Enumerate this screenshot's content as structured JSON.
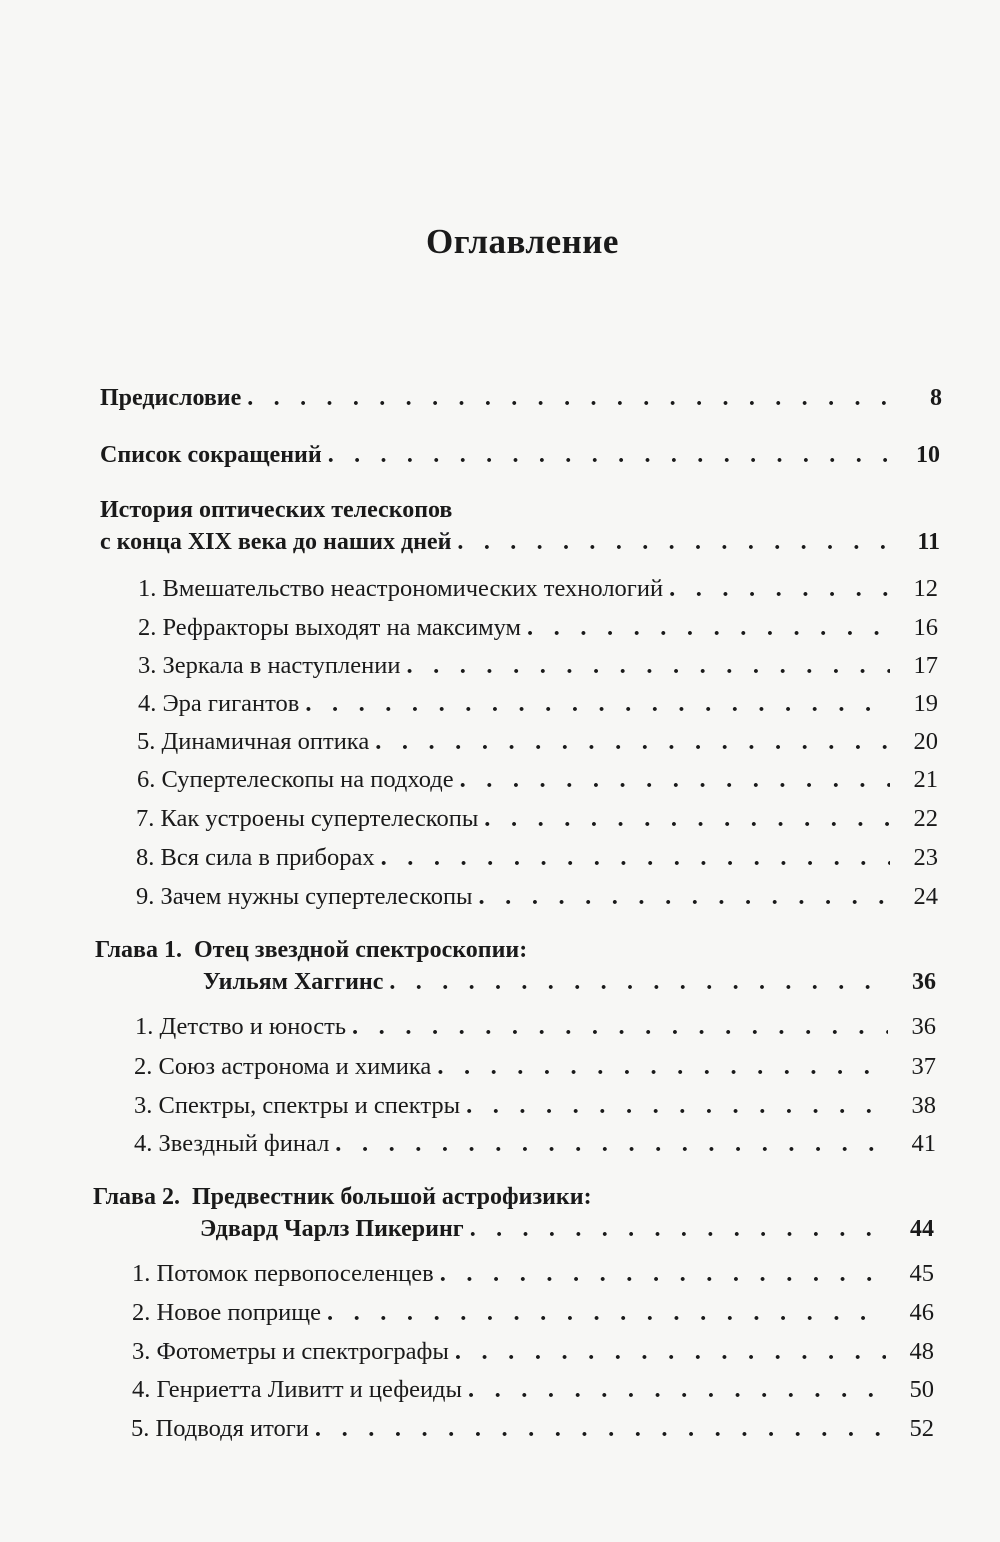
{
  "title": "Оглавление",
  "entries": [
    {
      "label": "Предисловие",
      "page": "8",
      "level": 0
    },
    {
      "label": "Список сокращений",
      "page": "10",
      "level": 0
    },
    {
      "label_line1": "История оптических телескопов",
      "label": "с конца XIX века до наших дней",
      "page": "11",
      "level": 0
    },
    {
      "label": "1. Вмешательство неастрономических технологий",
      "page": "12",
      "level": 1
    },
    {
      "label": "2. Рефракторы выходят на максимум",
      "page": "16",
      "level": 1
    },
    {
      "label": "3. Зеркала в наступлении",
      "page": "17",
      "level": 1
    },
    {
      "label": "4. Эра гигантов",
      "page": "19",
      "level": 1
    },
    {
      "label": "5. Динамичная оптика",
      "page": "20",
      "level": 1
    },
    {
      "label": "6. Супертелескопы на подходе",
      "page": "21",
      "level": 1
    },
    {
      "label": "7. Как устроены супертелескопы",
      "page": "22",
      "level": 1
    },
    {
      "label": "8. Вся сила в приборах",
      "page": "23",
      "level": 1
    },
    {
      "label": "9. Зачем нужны супертелескопы",
      "page": "24",
      "level": 1
    },
    {
      "label_line1": "Глава 1.  Отец звездной спектроскопии:",
      "label": "Уильям Хаггинс",
      "page": "36",
      "level": 0
    },
    {
      "label": "1. Детство и юность",
      "page": "36",
      "level": 1
    },
    {
      "label": "2. Союз астронома и химика",
      "page": "37",
      "level": 1
    },
    {
      "label": "3. Спектры, спектры и спектры",
      "page": "38",
      "level": 1
    },
    {
      "label": "4. Звездный финал",
      "page": "41",
      "level": 1
    },
    {
      "label_line1": "Глава 2.  Предвестник большой астрофизики:",
      "label": "Эдвард Чарлз Пикеринг",
      "page": "44",
      "level": 0
    },
    {
      "label": "1. Потомок первопоселенцев",
      "page": "45",
      "level": 1
    },
    {
      "label": "2. Новое поприще",
      "page": "46",
      "level": 1
    },
    {
      "label": "3. Фотометры и спектрографы",
      "page": "48",
      "level": 1
    },
    {
      "label": "4. Генриетта Ливитт и цефеиды",
      "page": "50",
      "level": 1
    },
    {
      "label": "5. Подводя итоги",
      "page": "52",
      "level": 1
    }
  ]
}
